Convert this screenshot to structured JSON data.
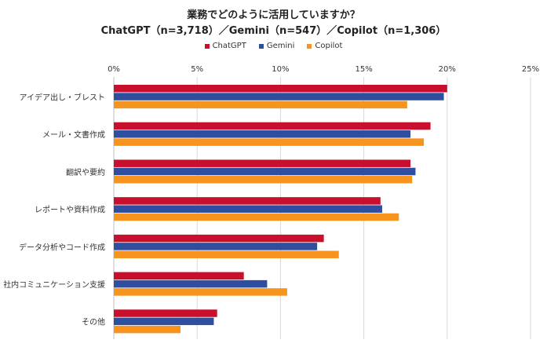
{
  "chart_data": {
    "type": "bar",
    "orientation": "horizontal",
    "title": "業務でどのように活用していますか？",
    "subtitle": "ChatGPT（n=3,718）／Gemini（n=547）／Copilot（n=1,306）",
    "categories": [
      "アイデア出し・ブレスト",
      "メール・文書作成",
      "翻訳や要約",
      "レポートや資料作成",
      "データ分析やコード作成",
      "社内コミュニケーション支援",
      "その他"
    ],
    "series": [
      {
        "name": "ChatGPT",
        "color": "#C8102E",
        "values": [
          20.0,
          19.0,
          17.8,
          16.0,
          12.6,
          7.8,
          6.2
        ]
      },
      {
        "name": "Gemini",
        "color": "#2E4EA0",
        "values": [
          19.8,
          17.8,
          18.1,
          16.1,
          12.2,
          9.2,
          6.0
        ]
      },
      {
        "name": "Copilot",
        "color": "#F7941D",
        "values": [
          17.6,
          18.6,
          17.9,
          17.1,
          13.5,
          10.4,
          4.0
        ]
      }
    ],
    "xlim": [
      0,
      25
    ],
    "xticks": [
      "0%",
      "5%",
      "10%",
      "15%",
      "20%",
      "25%"
    ],
    "xticks_values": [
      0,
      5,
      10,
      15,
      20,
      25
    ],
    "grid": true,
    "legend_position": "top"
  }
}
